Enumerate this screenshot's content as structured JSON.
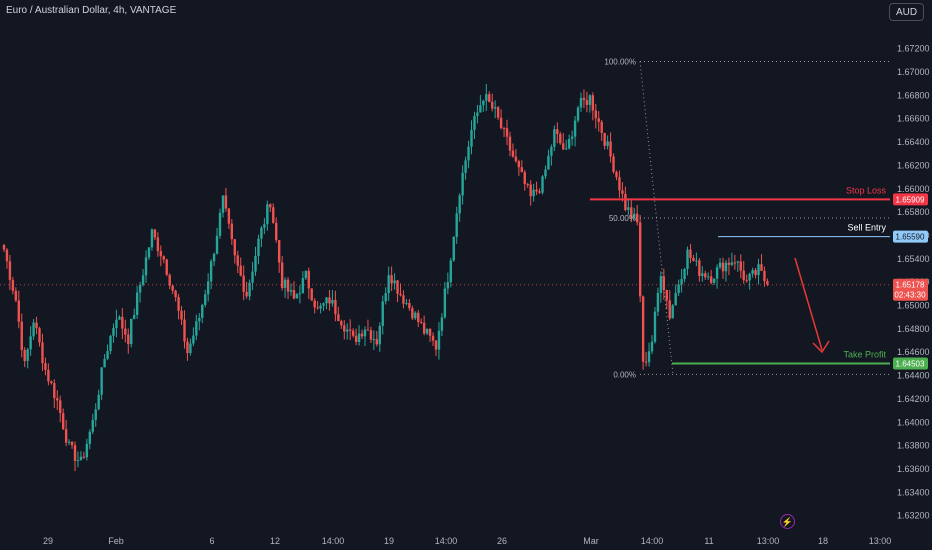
{
  "header": {
    "symbol_title": "Euro / Australian Dollar, 4h, VANTAGE",
    "currency_button": "AUD"
  },
  "colors": {
    "background": "#131722",
    "bull": "#26a69a",
    "bear": "#ef5350",
    "stop_loss": "#f23645",
    "sell_entry": "#90caf9",
    "take_profit": "#4caf50",
    "arrow": "#e53935"
  },
  "alert_icon": "lightning-icon",
  "chart_data": {
    "type": "candlestick",
    "y_axis": {
      "ylim": [
        1.6318,
        1.6736
      ],
      "ticks": [
        "1.67200",
        "1.67000",
        "1.66800",
        "1.66600",
        "1.66400",
        "1.66200",
        "1.66000",
        "1.65800",
        "1.65600",
        "1.65400",
        "1.65200",
        "1.65000",
        "1.64800",
        "1.64600",
        "1.64400",
        "1.64200",
        "1.64000",
        "1.63800",
        "1.63600",
        "1.63400",
        "1.63200"
      ]
    },
    "x_axis": {
      "labels": [
        "29",
        "Feb",
        "6",
        "12",
        "14:00",
        "19",
        "14:00",
        "26",
        "Mar",
        "14:00",
        "11",
        "13:00",
        "18",
        "13:00"
      ]
    },
    "price_levels": {
      "stop_loss": {
        "label": "Stop Loss",
        "value": 1.65909,
        "value_text": "1.65909"
      },
      "sell_entry": {
        "label": "Sell Entry",
        "value": 1.6559,
        "value_text": "1.65590"
      },
      "take_profit": {
        "label": "Take Profit",
        "value": 1.64503,
        "value_text": "1.64503"
      },
      "current": {
        "value": 1.65178,
        "value_text": "1.65178",
        "countdown": "02:43:30"
      }
    },
    "fibonacci": {
      "levels": [
        {
          "label": "100.00%",
          "value": 1.6709
        },
        {
          "label": "50.00%",
          "value": 1.6575
        },
        {
          "label": "0.00%",
          "value": 1.6441
        }
      ]
    },
    "candles_anchor": [
      [
        0,
        1.6548
      ],
      [
        4,
        1.6505
      ],
      [
        7,
        1.6448
      ],
      [
        10,
        1.6488
      ],
      [
        14,
        1.6445
      ],
      [
        18,
        1.6418
      ],
      [
        22,
        1.6378
      ],
      [
        26,
        1.6365
      ],
      [
        30,
        1.64
      ],
      [
        34,
        1.6455
      ],
      [
        38,
        1.6492
      ],
      [
        42,
        1.6472
      ],
      [
        46,
        1.6518
      ],
      [
        50,
        1.6562
      ],
      [
        54,
        1.654
      ],
      [
        58,
        1.6505
      ],
      [
        62,
        1.646
      ],
      [
        66,
        1.649
      ],
      [
        70,
        1.6535
      ],
      [
        74,
        1.659
      ],
      [
        78,
        1.654
      ],
      [
        82,
        1.651
      ],
      [
        86,
        1.6555
      ],
      [
        90,
        1.659
      ],
      [
        94,
        1.652
      ],
      [
        98,
        1.6505
      ],
      [
        102,
        1.6525
      ],
      [
        106,
        1.6495
      ],
      [
        110,
        1.6505
      ],
      [
        114,
        1.6488
      ],
      [
        118,
        1.647
      ],
      [
        122,
        1.6482
      ],
      [
        126,
        1.647
      ],
      [
        130,
        1.653
      ],
      [
        134,
        1.651
      ],
      [
        138,
        1.6495
      ],
      [
        142,
        1.6478
      ],
      [
        146,
        1.6465
      ],
      [
        150,
        1.6525
      ],
      [
        154,
        1.66
      ],
      [
        158,
        1.665
      ],
      [
        162,
        1.668
      ],
      [
        166,
        1.6665
      ],
      [
        170,
        1.664
      ],
      [
        174,
        1.6615
      ],
      [
        178,
        1.6592
      ],
      [
        182,
        1.6605
      ],
      [
        186,
        1.6648
      ],
      [
        190,
        1.663
      ],
      [
        194,
        1.667
      ],
      [
        198,
        1.6678
      ],
      [
        202,
        1.665
      ],
      [
        206,
        1.662
      ],
      [
        210,
        1.6585
      ],
      [
        214,
        1.657
      ],
      [
        216,
        1.6448
      ],
      [
        219,
        1.647
      ],
      [
        222,
        1.653
      ],
      [
        225,
        1.6492
      ],
      [
        228,
        1.652
      ],
      [
        231,
        1.6545
      ],
      [
        235,
        1.653
      ],
      [
        239,
        1.6525
      ],
      [
        243,
        1.6535
      ],
      [
        247,
        1.654
      ],
      [
        251,
        1.652
      ],
      [
        255,
        1.653
      ],
      [
        258,
        1.6518
      ]
    ],
    "x_range": [
      0,
      292
    ]
  }
}
